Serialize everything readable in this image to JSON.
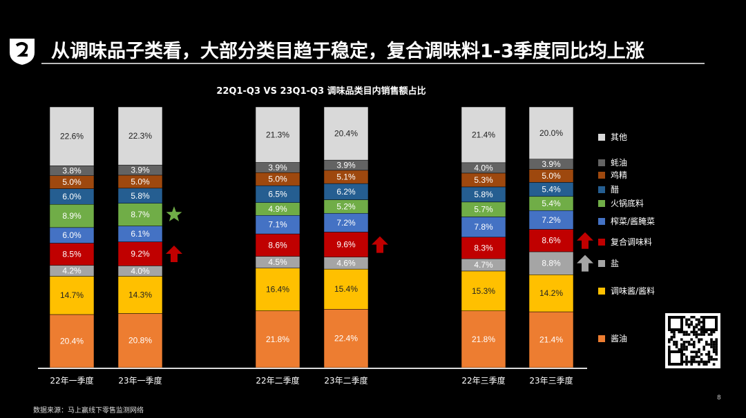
{
  "header": {
    "title": "从调味品子类看，大部分类目趋于稳定，复合调味料1-3季度同比均上涨"
  },
  "footer": {
    "source": "数据来源：马上赢线下零售监测网络",
    "page": "8"
  },
  "chart_data": {
    "type": "bar",
    "stacked": true,
    "title": "22Q1-Q3 VS 23Q1-Q3 调味品类目内销售额占比",
    "categories": [
      "22年一季度",
      "23年一季度",
      "22年二季度",
      "23年二季度",
      "22年三季度",
      "23年三季度"
    ],
    "ylim": [
      0,
      100
    ],
    "legend_position": "right",
    "series": [
      {
        "name": "酱油",
        "color": "#ED7D31",
        "values": [
          20.4,
          20.8,
          21.8,
          22.4,
          21.8,
          21.4
        ]
      },
      {
        "name": "调味酱/酱料",
        "color": "#FFC000",
        "values": [
          14.7,
          14.3,
          16.4,
          15.4,
          15.3,
          14.2
        ]
      },
      {
        "name": "盐",
        "color": "#A5A5A5",
        "values": [
          4.2,
          4.0,
          4.5,
          4.6,
          4.7,
          8.8
        ]
      },
      {
        "name": "复合调味料",
        "color": "#C00000",
        "values": [
          8.5,
          9.2,
          8.6,
          9.6,
          8.3,
          8.6
        ]
      },
      {
        "name": "榨菜/酱腌菜",
        "color": "#4472C4",
        "values": [
          6.0,
          6.1,
          7.1,
          7.2,
          7.8,
          7.2
        ]
      },
      {
        "name": "火锅底料",
        "color": "#70AD47",
        "values": [
          8.9,
          8.7,
          4.9,
          5.2,
          5.7,
          5.4
        ]
      },
      {
        "name": "醋",
        "color": "#255E91",
        "values": [
          6.0,
          5.8,
          6.5,
          6.2,
          5.8,
          5.4
        ]
      },
      {
        "name": "鸡精",
        "color": "#9E480E",
        "values": [
          5.0,
          5.0,
          5.0,
          5.1,
          5.3,
          5.0
        ]
      },
      {
        "name": "蚝油",
        "color": "#636363",
        "values": [
          3.8,
          3.9,
          3.9,
          3.9,
          4.0,
          3.9
        ]
      },
      {
        "name": "其他",
        "color": "#D9D9D9",
        "values": [
          22.6,
          22.3,
          21.3,
          20.4,
          21.4,
          20.0
        ]
      }
    ],
    "annotations": [
      {
        "type": "star",
        "category": "23年一季度",
        "series": "火锅底料",
        "color": "#70AD47"
      },
      {
        "type": "up-arrow",
        "category": "23年一季度",
        "series": "复合调味料",
        "color": "#C00000"
      },
      {
        "type": "up-arrow",
        "category": "23年二季度",
        "series": "复合调味料",
        "color": "#C00000"
      },
      {
        "type": "up-arrow",
        "category": "23年三季度",
        "series": "复合调味料",
        "color": "#C00000"
      },
      {
        "type": "up-arrow",
        "category": "23年三季度",
        "series": "盐",
        "color": "#A5A5A5"
      }
    ]
  }
}
